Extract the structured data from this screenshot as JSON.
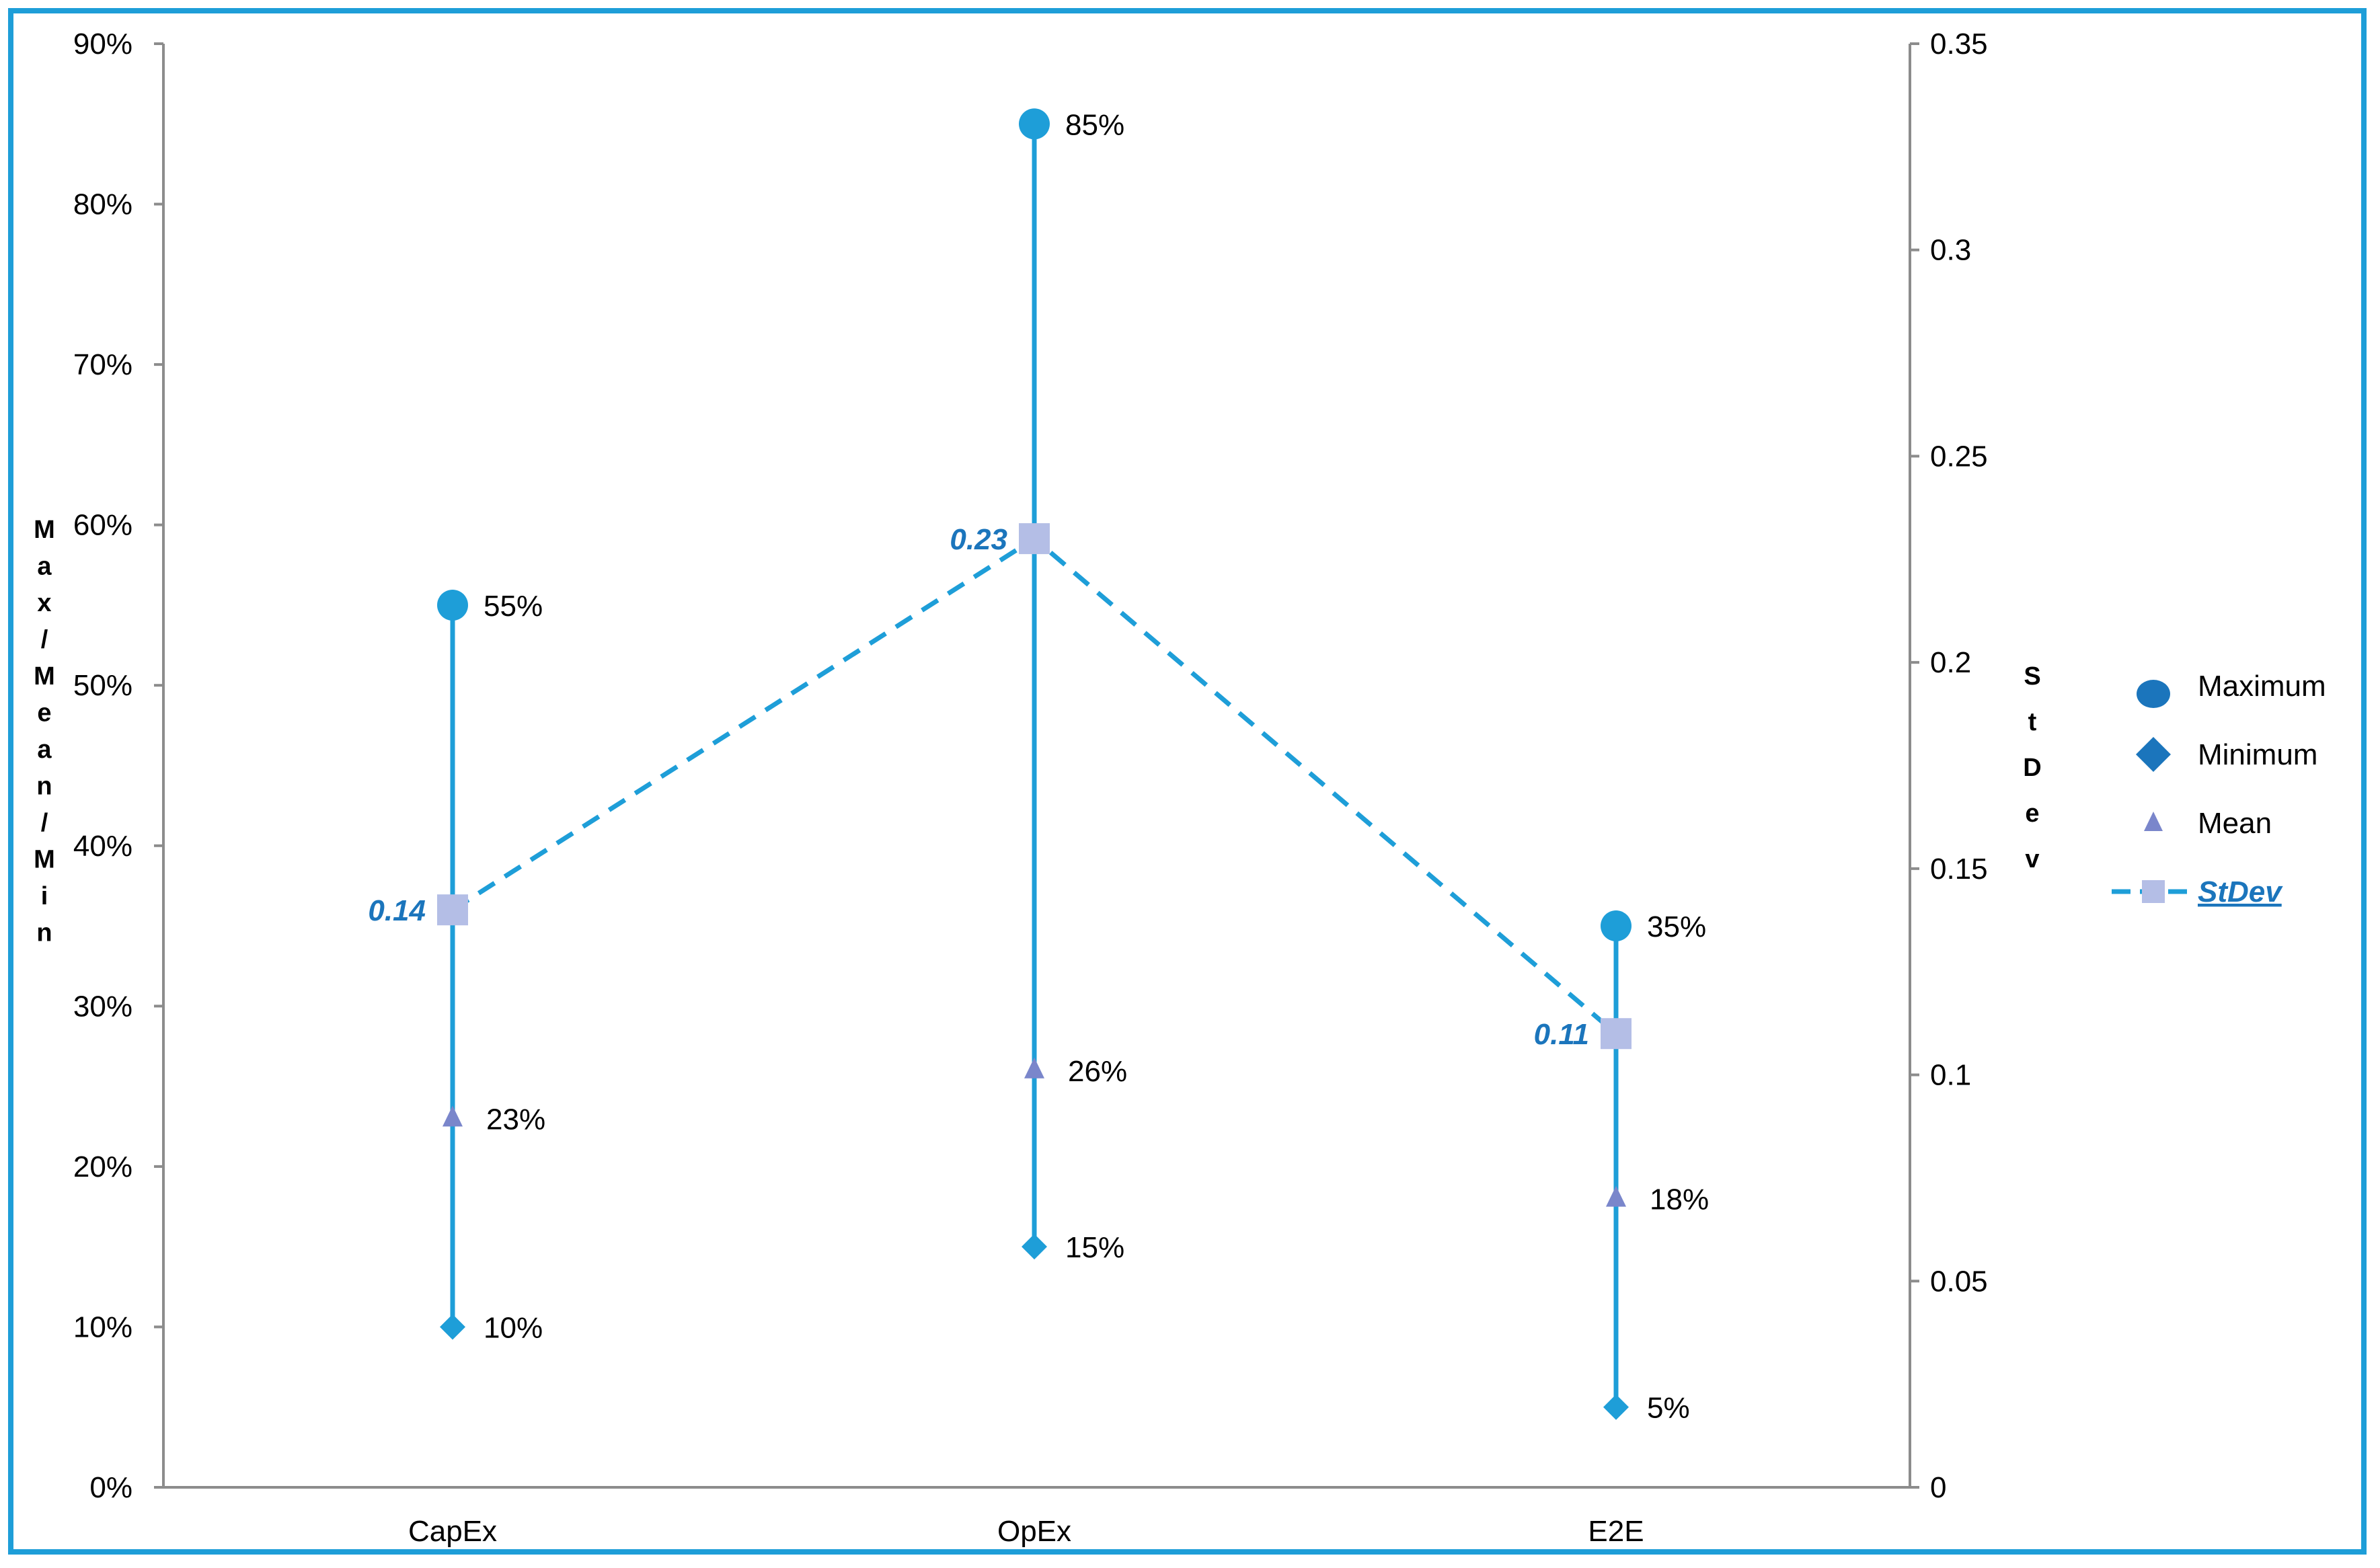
{
  "chart_data": {
    "type": "dot-range",
    "categories": [
      "CapEx",
      "OpEx",
      "E2E"
    ],
    "series": [
      {
        "name": "Maximum",
        "values": [
          55,
          85,
          35
        ],
        "labels": [
          "55%",
          "85%",
          "35%"
        ],
        "axis": "left",
        "marker": "circle",
        "color": "#1E9ED8"
      },
      {
        "name": "Minimum",
        "values": [
          10,
          15,
          5
        ],
        "labels": [
          "10%",
          "15%",
          "5%"
        ],
        "axis": "left",
        "marker": "diamond",
        "color": "#1E9ED8"
      },
      {
        "name": "Mean",
        "values": [
          23,
          26,
          18
        ],
        "labels": [
          "23%",
          "26%",
          "18%"
        ],
        "axis": "left",
        "marker": "triangle",
        "color": "#7A86CB"
      },
      {
        "name": "StDev",
        "values": [
          0.14,
          0.23,
          0.11
        ],
        "labels": [
          "0.14",
          "0.23",
          "0.11"
        ],
        "axis": "right",
        "marker": "square",
        "line": "dashed",
        "color": "#B4BEE6"
      }
    ],
    "y_left": {
      "label": "Max/Mean/Min",
      "ylim": [
        0,
        90
      ],
      "ticks": [
        0,
        10,
        20,
        30,
        40,
        50,
        60,
        70,
        80,
        90
      ],
      "tick_labels": [
        "0%",
        "10%",
        "20%",
        "30%",
        "40%",
        "50%",
        "60%",
        "70%",
        "80%",
        "90%"
      ]
    },
    "y_right": {
      "label": "StDev",
      "ylim": [
        0,
        0.35
      ],
      "ticks": [
        0,
        0.05,
        0.1,
        0.15,
        0.2,
        0.25,
        0.3,
        0.35
      ],
      "tick_labels": [
        "0",
        "0.05",
        "0.1",
        "0.15",
        "0.2",
        "0.25",
        "0.3",
        "0.35"
      ]
    },
    "legend": {
      "placement": "right",
      "entries": [
        "Maximum",
        "Minimum",
        "Mean",
        "StDev"
      ]
    },
    "grid": false,
    "colors": {
      "range_line": "#1E9ED8",
      "marker_blue": "#1E9ED8",
      "legend_blue": "#1B75BC",
      "mean": "#7A86CB",
      "stdev_square": "#B4BEE6",
      "stdev_line": "#1E9ED8",
      "stdev_label": "#1B75BC",
      "axis": "#8C8C8C",
      "text": "#000000"
    }
  }
}
